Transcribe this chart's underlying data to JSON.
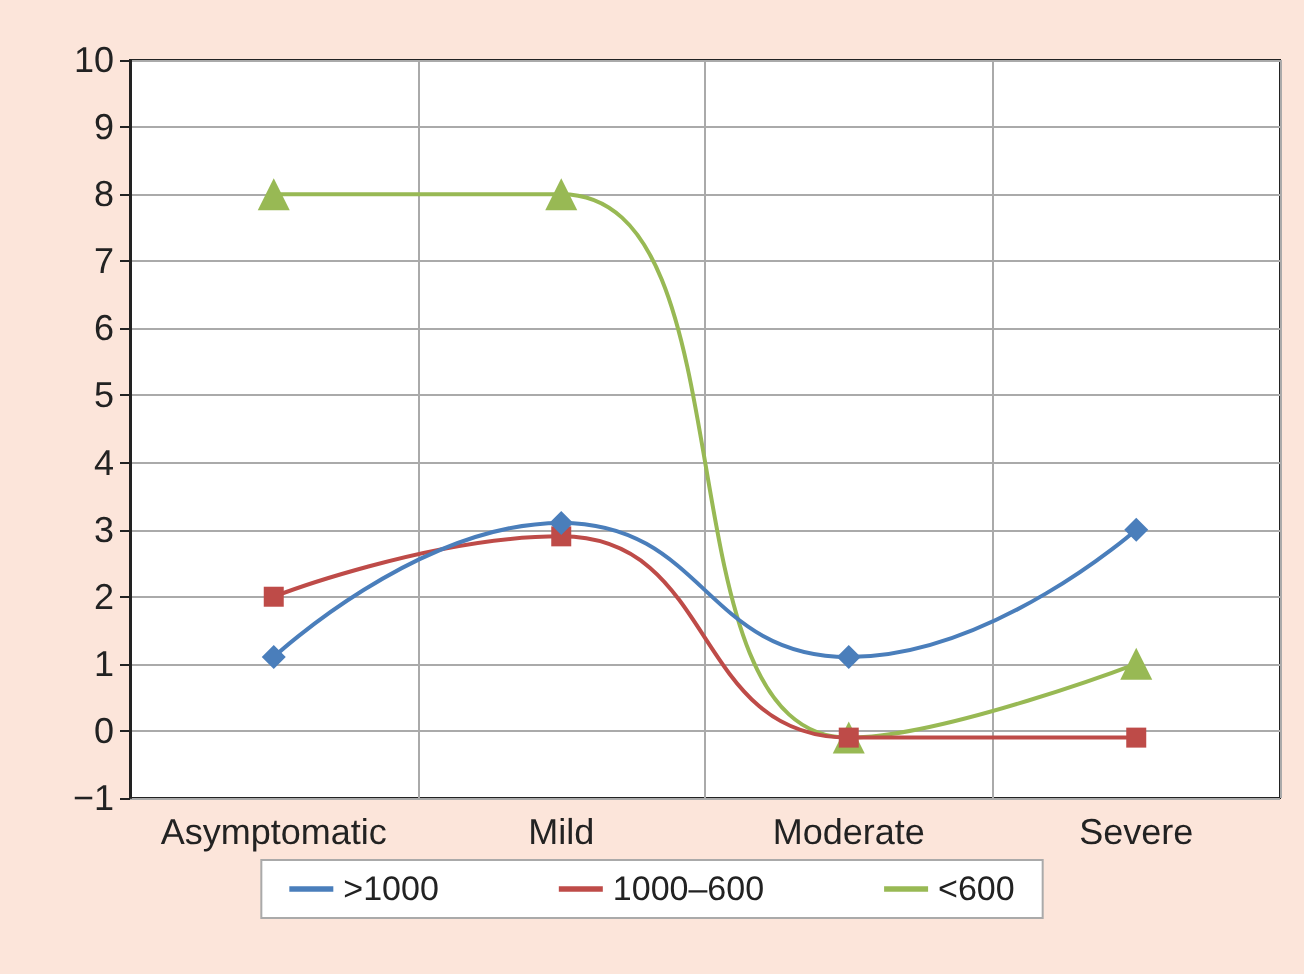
{
  "chart_data": {
    "type": "line",
    "categories": [
      "Asymptomatic",
      "Mild",
      "Moderate",
      "Severe"
    ],
    "series": [
      {
        "name": ">1000",
        "color": "#4a7ebb",
        "marker": "diamond",
        "values": [
          1.1,
          3.1,
          1.1,
          3.0
        ]
      },
      {
        "name": "1000–600",
        "color": "#be4b48",
        "marker": "square",
        "values": [
          2.0,
          2.9,
          -0.1,
          -0.1
        ]
      },
      {
        "name": "<600",
        "color": "#98b954",
        "marker": "triangle",
        "values": [
          8.0,
          8.0,
          -0.1,
          1.0
        ]
      }
    ],
    "ylim": [
      -1,
      10
    ],
    "yticks": [
      {
        "value": -1,
        "label": "−1"
      },
      0,
      1,
      2,
      3,
      4,
      5,
      6,
      7,
      8,
      9,
      10
    ],
    "grid": true,
    "legend": "bottom"
  }
}
